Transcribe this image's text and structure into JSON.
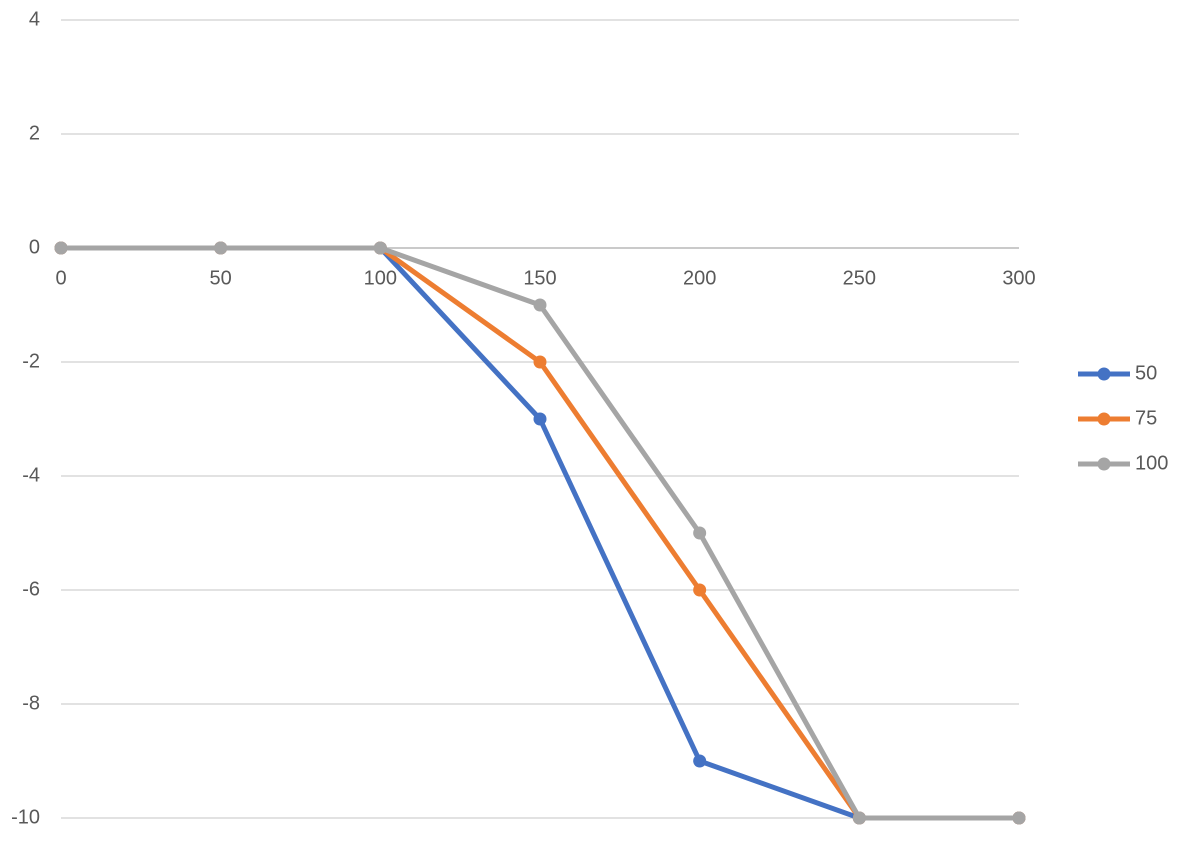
{
  "chart_data": {
    "type": "line",
    "x": [
      0,
      50,
      100,
      150,
      200,
      250,
      300
    ],
    "series": [
      {
        "name": "50",
        "color": "#4472c4",
        "values": [
          0,
          0,
          0,
          -3,
          -9,
          -10,
          -10
        ]
      },
      {
        "name": "75",
        "color": "#ed7d31",
        "values": [
          0,
          0,
          0,
          -2,
          -6,
          -10,
          -10
        ]
      },
      {
        "name": "100",
        "color": "#a5a5a5",
        "values": [
          0,
          0,
          0,
          -1,
          -5,
          -10,
          -10
        ]
      }
    ],
    "xlim": [
      0,
      300
    ],
    "xticks": [
      0,
      50,
      100,
      150,
      200,
      250,
      300
    ],
    "ylim": [
      -10,
      4
    ],
    "yticks": [
      -10,
      -8,
      -6,
      -4,
      -2,
      0,
      2,
      4
    ],
    "grid": true,
    "legend": "right"
  }
}
